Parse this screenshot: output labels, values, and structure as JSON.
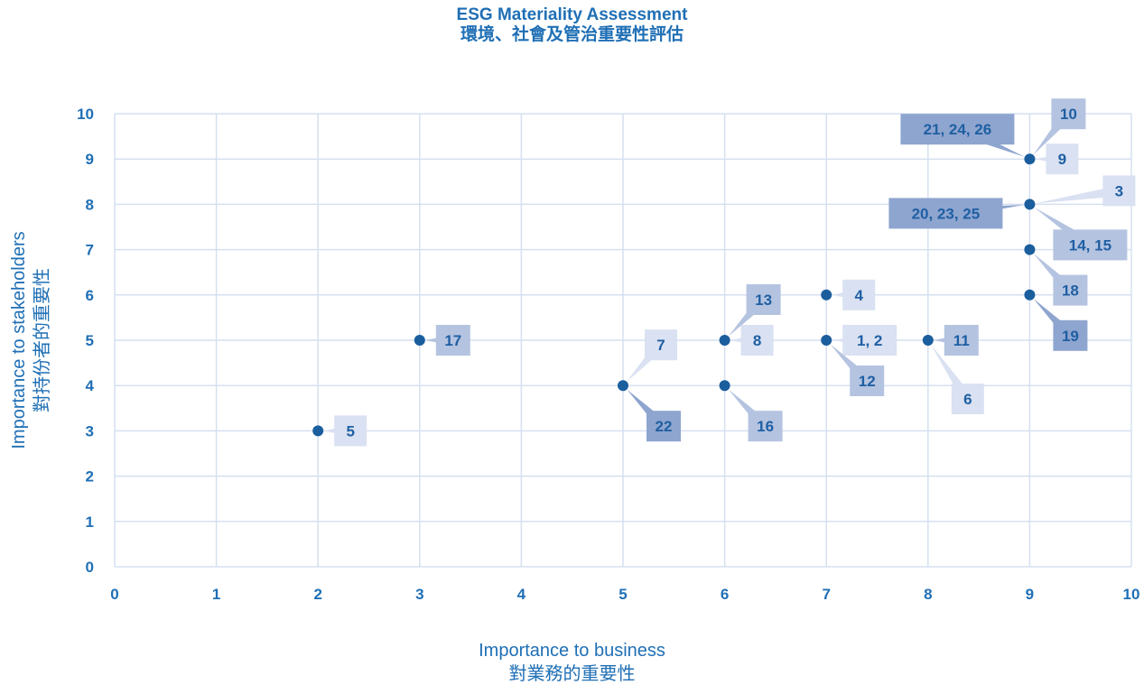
{
  "chart_data": {
    "type": "scatter",
    "title": "ESG Materiality Assessment",
    "title_zh": "環境、社會及管治重要性評估",
    "xlabel": "Importance to business",
    "xlabel_zh": "對業務的重要性",
    "ylabel": "Importance to stakeholders",
    "ylabel_zh": "對持份者的重要性",
    "xlim": [
      0,
      10
    ],
    "ylim": [
      0,
      10
    ],
    "x_ticks": [
      "0",
      "1",
      "2",
      "3",
      "4",
      "5",
      "6",
      "7",
      "8",
      "9",
      "10"
    ],
    "y_ticks": [
      "0",
      "1",
      "2",
      "3",
      "4",
      "5",
      "6",
      "7",
      "8",
      "9",
      "10"
    ],
    "grid": true,
    "points": [
      {
        "x": 2,
        "y": 3
      },
      {
        "x": 3,
        "y": 5
      },
      {
        "x": 5,
        "y": 4
      },
      {
        "x": 6,
        "y": 5
      },
      {
        "x": 6,
        "y": 4
      },
      {
        "x": 7,
        "y": 6
      },
      {
        "x": 7,
        "y": 5
      },
      {
        "x": 8,
        "y": 5
      },
      {
        "x": 9,
        "y": 9
      },
      {
        "x": 9,
        "y": 8
      },
      {
        "x": 9,
        "y": 7
      },
      {
        "x": 9,
        "y": 6
      }
    ],
    "labels": [
      {
        "text": "5",
        "x": 2,
        "y": 3,
        "dir": "E",
        "shade": "light"
      },
      {
        "text": "17",
        "x": 3,
        "y": 5,
        "dir": "E",
        "shade": "mid"
      },
      {
        "text": "7",
        "x": 5,
        "y": 4,
        "dir": "NE",
        "shade": "light"
      },
      {
        "text": "22",
        "x": 5,
        "y": 4,
        "dir": "SE",
        "shade": "dark"
      },
      {
        "text": "13",
        "x": 6,
        "y": 5,
        "dir": "NE",
        "shade": "mid"
      },
      {
        "text": "8",
        "x": 6,
        "y": 5,
        "dir": "E",
        "shade": "light"
      },
      {
        "text": "16",
        "x": 6,
        "y": 4,
        "dir": "SE",
        "shade": "mid"
      },
      {
        "text": "4",
        "x": 7,
        "y": 6,
        "dir": "E",
        "shade": "light"
      },
      {
        "text": "1, 2",
        "x": 7,
        "y": 5,
        "dir": "E",
        "shade": "light"
      },
      {
        "text": "12",
        "x": 7,
        "y": 5,
        "dir": "SE",
        "shade": "mid"
      },
      {
        "text": "11",
        "x": 8,
        "y": 5,
        "dir": "E",
        "shade": "mid"
      },
      {
        "text": "6",
        "x": 8,
        "y": 5,
        "dir": "S",
        "shade": "light"
      },
      {
        "text": "10",
        "x": 9,
        "y": 9,
        "dir": "N",
        "shade": "mid"
      },
      {
        "text": "21, 24, 26",
        "x": 9,
        "y": 9,
        "dir": "NW",
        "shade": "dark"
      },
      {
        "text": "9",
        "x": 9,
        "y": 9,
        "dir": "E",
        "shade": "light"
      },
      {
        "text": "3",
        "x": 9,
        "y": 8,
        "dir": "NE",
        "shade": "light"
      },
      {
        "text": "20, 23, 25",
        "x": 9,
        "y": 8,
        "dir": "W",
        "shade": "dark"
      },
      {
        "text": "14, 15",
        "x": 9,
        "y": 8,
        "dir": "SE",
        "shade": "mid"
      },
      {
        "text": "18",
        "x": 9,
        "y": 7,
        "dir": "SE",
        "shade": "mid"
      },
      {
        "text": "19",
        "x": 9,
        "y": 6,
        "dir": "SE",
        "shade": "dark"
      }
    ],
    "colors": {
      "title": "#1f6fb5",
      "axis_text": "#1f6fb5",
      "grid": "#d6e0f0",
      "point": "#1b5e9e",
      "label_text": "#1f5fa3",
      "shade_light": "#d9e1f2",
      "shade_mid": "#b4c3e0",
      "shade_dark": "#8ea5cf"
    }
  }
}
